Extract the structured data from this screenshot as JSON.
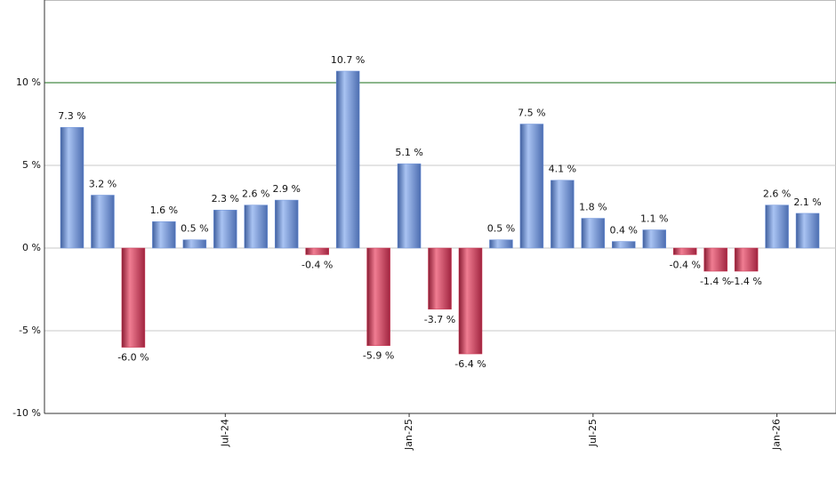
{
  "chart_data": {
    "type": "bar",
    "categories": [
      null,
      null,
      null,
      null,
      null,
      "Jul-24",
      null,
      null,
      null,
      null,
      null,
      "Jan-25",
      null,
      null,
      null,
      null,
      null,
      "Jul-25",
      null,
      null,
      null,
      null,
      null,
      "Jan-26",
      null
    ],
    "values": [
      7.3,
      3.2,
      -6.0,
      1.6,
      0.5,
      2.3,
      2.6,
      2.9,
      -0.4,
      10.7,
      -5.9,
      5.1,
      -3.7,
      -6.4,
      0.5,
      7.5,
      4.1,
      1.8,
      0.4,
      1.1,
      -0.4,
      -1.4,
      -1.4,
      2.6,
      2.1
    ],
    "value_labels": [
      "7.3 %",
      "3.2 %",
      "-6.0 %",
      "1.6 %",
      "0.5 %",
      "2.3 %",
      "2.6 %",
      "2.9 %",
      "-0.4 %",
      "10.7 %",
      "-5.9 %",
      "5.1 %",
      "-3.7 %",
      "-6.4 %",
      "0.5 %",
      "7.5 %",
      "4.1 %",
      "1.8 %",
      "0.4 %",
      "1.1 %",
      "-0.4 %",
      "-1.4 %",
      "-1.4 %",
      "2.6 %",
      "2.1 %"
    ],
    "positive_color": "#6f94dc",
    "negative_color": "#cc3552",
    "ylim": [
      -10,
      15
    ],
    "yticks": [
      {
        "value": -10,
        "label": "-10 %"
      },
      {
        "value": -5,
        "label": "-5 %"
      },
      {
        "value": 0,
        "label": "0 %"
      },
      {
        "value": 5,
        "label": "5 %"
      },
      {
        "value": 10,
        "label": "10 %"
      }
    ],
    "grid": true,
    "reference_line": {
      "value": 10,
      "color": "#1a6e1a"
    }
  }
}
